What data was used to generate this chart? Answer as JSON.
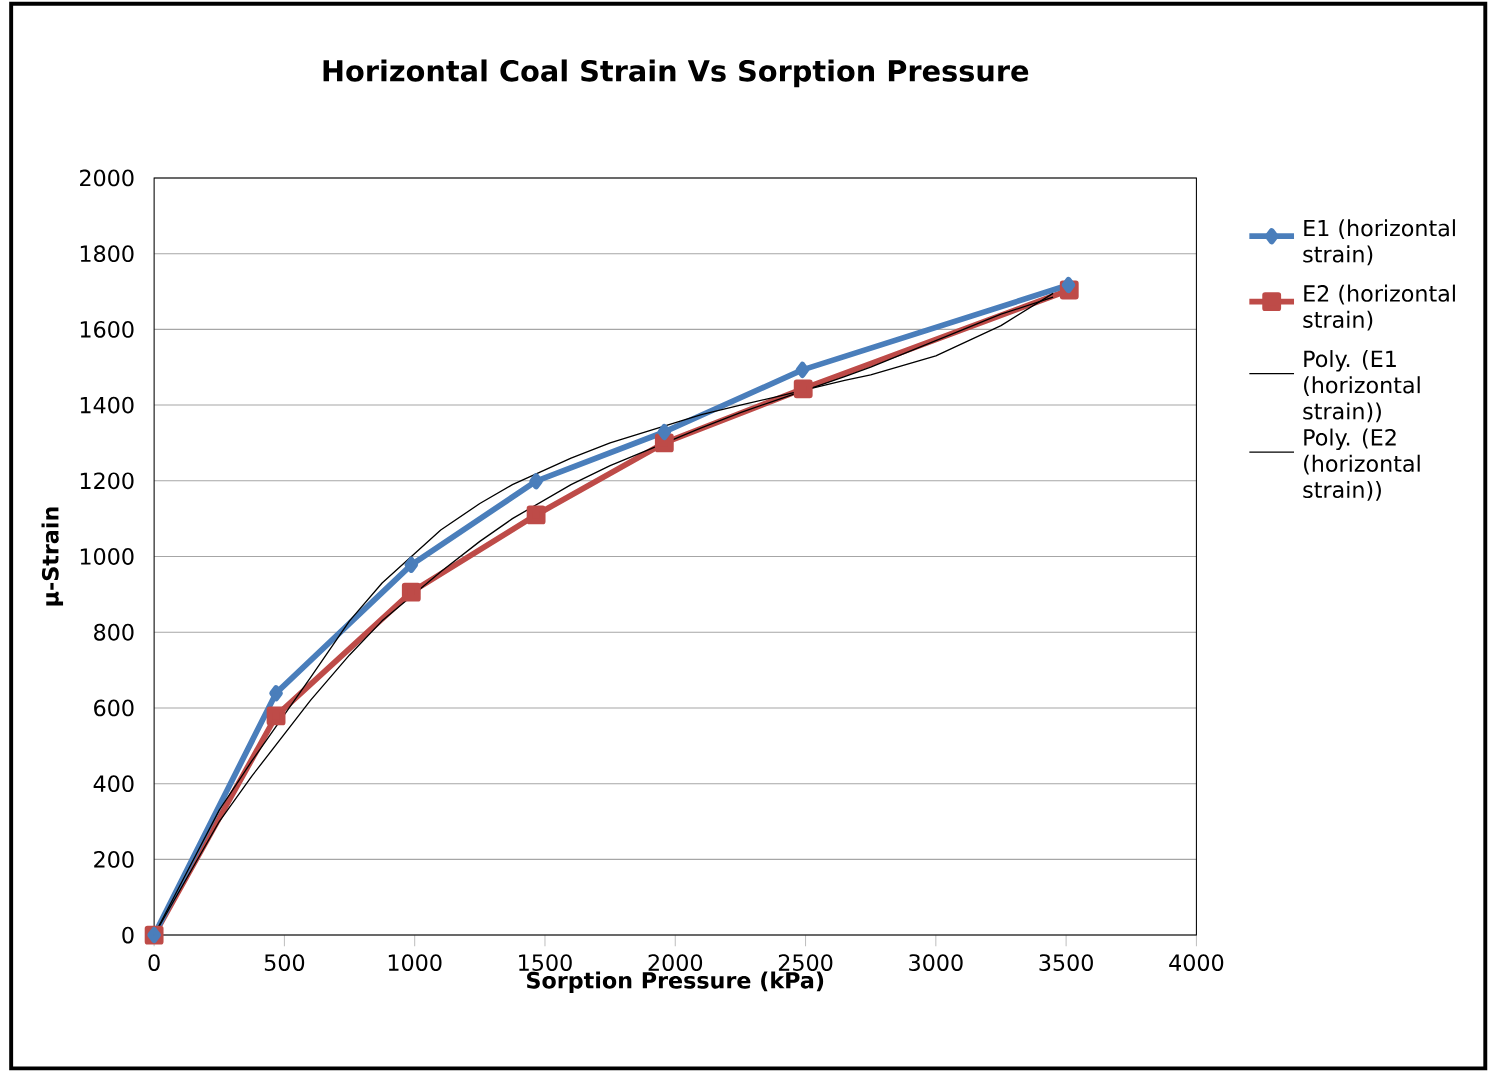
{
  "chart_data": {
    "type": "line",
    "title": "Horizontal Coal Strain Vs Sorption Pressure",
    "xlabel": "Sorption Pressure (kPa)",
    "ylabel": "µ-Strain",
    "series": [
      {
        "name": "E1 (horizontal strain)",
        "color": "#4a7ebb",
        "marker": "diamond",
        "x": [
          0,
          468,
          987,
          1466,
          1958,
          2488,
          3509
        ],
        "values": [
          0,
          639,
          978,
          1199,
          1329,
          1493,
          1717
        ]
      },
      {
        "name": "E2 (horizontal strain)",
        "color": "#be4b48",
        "marker": "square",
        "x": [
          0,
          468,
          987,
          1466,
          1958,
          2491,
          3512
        ],
        "values": [
          0,
          579,
          906,
          1110,
          1300,
          1443,
          1704
        ]
      },
      {
        "name": "Poly. (E1 (horizontal strain))",
        "color": "#000000",
        "marker": "none",
        "x": [
          0,
          250,
          375,
          600,
          750,
          875,
          1100,
          1250,
          1375,
          1600,
          1750,
          2100,
          2250,
          2375,
          2650,
          2750,
          3000,
          3250,
          3450
        ],
        "values": [
          0,
          330,
          460,
          680,
          830,
          930,
          1070,
          1140,
          1190,
          1260,
          1300,
          1375,
          1400,
          1420,
          1465,
          1480,
          1530,
          1610,
          1695
        ]
      },
      {
        "name": "Poly. (E2 (horizontal strain))",
        "color": "#000000",
        "marker": "none",
        "x": [
          0,
          250,
          375,
          600,
          750,
          875,
          1100,
          1250,
          1375,
          1600,
          1750,
          2100,
          2250,
          2375,
          2650,
          2750,
          3000,
          3250,
          3450
        ],
        "values": [
          0,
          300,
          420,
          620,
          740,
          830,
          960,
          1040,
          1100,
          1190,
          1240,
          1340,
          1380,
          1410,
          1475,
          1500,
          1570,
          1640,
          1685
        ]
      }
    ],
    "xlim": [
      0,
      4000
    ],
    "xticks": [
      0,
      500,
      1000,
      1500,
      2000,
      2500,
      3000,
      3500,
      4000
    ],
    "ylim": [
      0,
      2000
    ],
    "yticks": [
      0,
      200,
      400,
      600,
      800,
      1000,
      1200,
      1400,
      1600,
      1800,
      2000
    ],
    "grid": "y",
    "legend": "right"
  }
}
